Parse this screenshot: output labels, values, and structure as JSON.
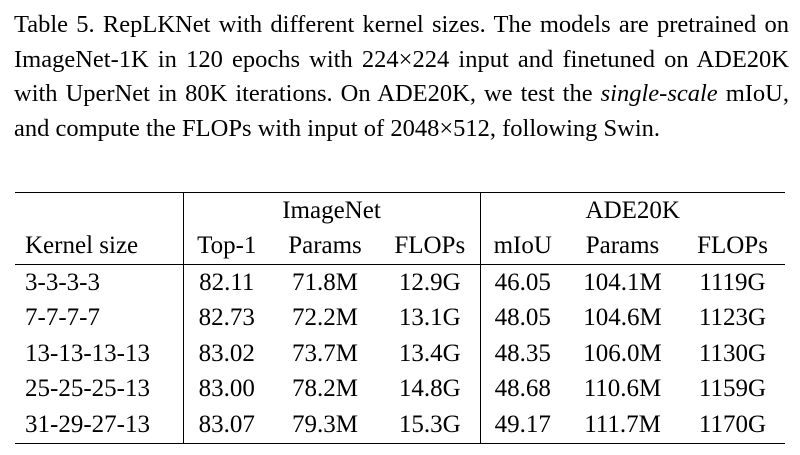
{
  "caption": {
    "before": "Table 5. RepLKNet with different kernel sizes. The models are pretrained on ImageNet-1K in 120 epochs with 224×224 input and finetuned on ADE20K with UperNet in 80K iterations. On ADE20K, we test the",
    "emphasis": "single-scale",
    "after": "mIoU, and compute the FLOPs with input of 2048×512, following Swin."
  },
  "table": {
    "groups": [
      "ImageNet",
      "ADE20K"
    ],
    "columns": [
      "Kernel size",
      "Top-1",
      "Params",
      "FLOPs",
      "mIoU",
      "Params",
      "FLOPs"
    ],
    "rows": [
      [
        "3-3-3-3",
        "82.11",
        "71.8M",
        "12.9G",
        "46.05",
        "104.1M",
        "1119G"
      ],
      [
        "7-7-7-7",
        "82.73",
        "72.2M",
        "13.1G",
        "48.05",
        "104.6M",
        "1123G"
      ],
      [
        "13-13-13-13",
        "83.02",
        "73.7M",
        "13.4G",
        "48.35",
        "106.0M",
        "1130G"
      ],
      [
        "25-25-25-13",
        "83.00",
        "78.2M",
        "14.8G",
        "48.68",
        "110.6M",
        "1159G"
      ],
      [
        "31-29-27-13",
        "83.07",
        "79.3M",
        "15.3G",
        "49.17",
        "111.7M",
        "1170G"
      ]
    ]
  }
}
